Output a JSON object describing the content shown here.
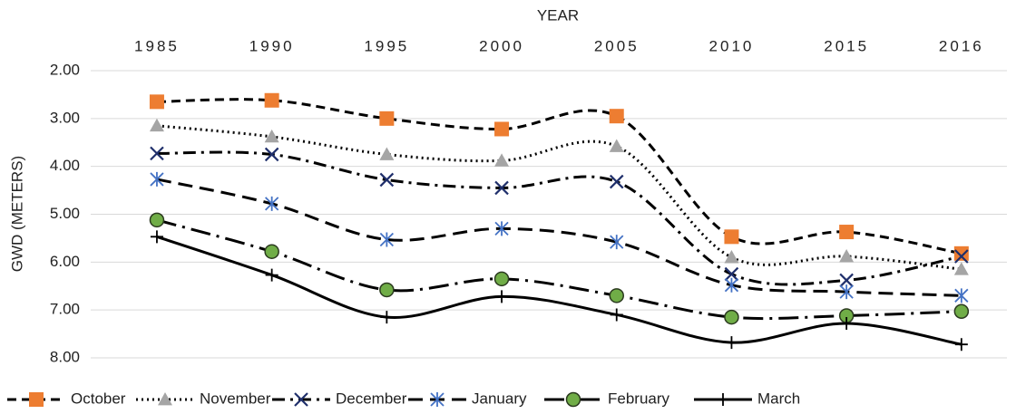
{
  "chart_data": {
    "type": "line",
    "x_label": "YEAR",
    "y_label": "GWD (METERS)",
    "categories": [
      "1985",
      "1990",
      "1995",
      "2000",
      "2005",
      "2010",
      "2015",
      "2016"
    ],
    "ylim": [
      2,
      8
    ],
    "y_inverted": true,
    "grid": true,
    "smooth": true,
    "x_axis_position": "top",
    "legend_position": "bottom",
    "yticks": [
      {
        "value": 2,
        "label": "2.00"
      },
      {
        "value": 3,
        "label": "3.00"
      },
      {
        "value": 4,
        "label": "4.00"
      },
      {
        "value": 5,
        "label": "5.00"
      },
      {
        "value": 6,
        "label": "6.00"
      },
      {
        "value": 7,
        "label": "7.00"
      },
      {
        "value": 8,
        "label": "8.00"
      }
    ],
    "series": [
      {
        "name": "October",
        "color": "#ed7d31",
        "marker": "square",
        "dash": "10 6",
        "values": [
          2.65,
          2.62,
          3.0,
          3.22,
          2.95,
          5.47,
          5.37,
          5.82
        ]
      },
      {
        "name": "November",
        "color": "#a5a5a5",
        "marker": "triangle",
        "dash": "2 4",
        "values": [
          3.15,
          3.38,
          3.75,
          3.88,
          3.58,
          5.9,
          5.88,
          6.15
        ]
      },
      {
        "name": "December",
        "color": "#1f2f6b",
        "marker": "x",
        "dash": "14 6 3 6",
        "values": [
          3.73,
          3.75,
          4.28,
          4.45,
          4.32,
          6.25,
          6.38,
          5.88
        ]
      },
      {
        "name": "January",
        "color": "#4472c4",
        "marker": "star",
        "dash": "16 8",
        "values": [
          4.27,
          4.78,
          5.53,
          5.3,
          5.58,
          6.48,
          6.62,
          6.7
        ]
      },
      {
        "name": "February",
        "color": "#70ad47",
        "marker": "circle",
        "dash": "22 7 3 7",
        "values": [
          5.12,
          5.78,
          6.58,
          6.35,
          6.7,
          7.15,
          7.12,
          7.03
        ]
      },
      {
        "name": "March",
        "color": "#000000",
        "marker": "plus",
        "dash": "none",
        "values": [
          5.47,
          6.27,
          7.15,
          6.72,
          7.1,
          7.68,
          7.28,
          7.72
        ]
      }
    ]
  }
}
